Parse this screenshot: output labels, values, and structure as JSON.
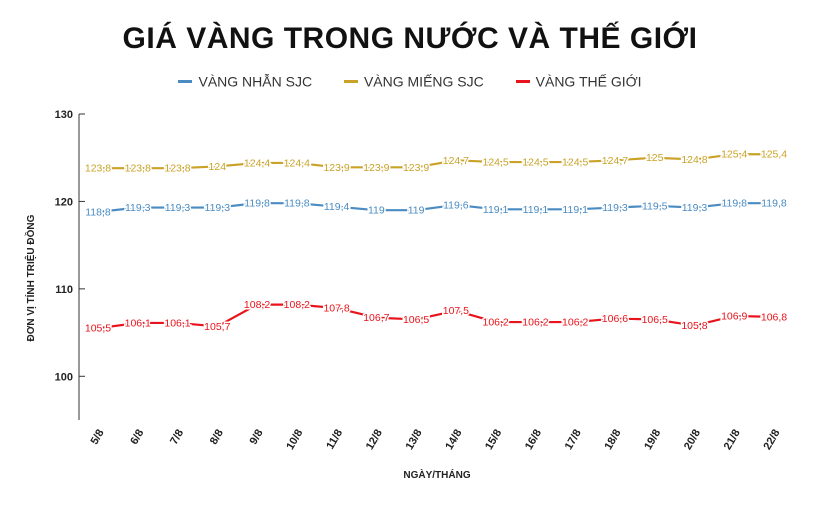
{
  "chart_data": {
    "type": "line",
    "title": "GIÁ VÀNG TRONG NƯỚC VÀ THẾ GIỚI",
    "xlabel": "NGÀY/THÁNG",
    "ylabel": "ĐƠN VỊ TÍNH TRIỆU ĐỒNG",
    "ylim": [
      95,
      130
    ],
    "yticks": [
      100,
      110,
      120,
      130
    ],
    "grid": false,
    "legend_position": "top",
    "categories": [
      "5/8",
      "6/8",
      "7/8",
      "8/8",
      "9/8",
      "10/8",
      "11/8",
      "12/8",
      "13/8",
      "14/8",
      "15/8",
      "16/8",
      "17/8",
      "18/8",
      "19/8",
      "20/8",
      "21/8",
      "22/8"
    ],
    "series": [
      {
        "name": "VÀNG NHẪN SJC",
        "color": "#4a8bc2",
        "values": [
          118.8,
          119.3,
          119.3,
          119.3,
          119.8,
          119.8,
          119.4,
          119,
          119,
          119.6,
          119.1,
          119.1,
          119.1,
          119.3,
          119.5,
          119.3,
          119.8,
          119.8
        ],
        "labels": [
          "118,8",
          "119,3",
          "119,3",
          "119,3",
          "119,8",
          "119,8",
          "119,4",
          "119",
          "119",
          "119,6",
          "119,1",
          "119,1",
          "119,1",
          "119,3",
          "119,5",
          "119,3",
          "119,8",
          "119,8"
        ]
      },
      {
        "name": "VÀNG MIẾNG SJC",
        "color": "#c9a227",
        "values": [
          123.8,
          123.8,
          123.8,
          124,
          124.4,
          124.4,
          123.9,
          123.9,
          123.9,
          124.7,
          124.5,
          124.5,
          124.5,
          124.7,
          125,
          124.8,
          125.4,
          125.4
        ],
        "labels": [
          "123,8",
          "123,8",
          "123,8",
          "124",
          "124,4",
          "124,4",
          "123,9",
          "123,9",
          "123,9",
          "124,7",
          "124,5",
          "124,5",
          "124,5",
          "124,7",
          "125",
          "124,8",
          "125,4",
          "125,4"
        ]
      },
      {
        "name": "VÀNG THẾ GIỚI",
        "color": "#e8131b",
        "values": [
          105.5,
          106.1,
          106.1,
          105.7,
          108.2,
          108.2,
          107.8,
          106.7,
          106.5,
          107.5,
          106.2,
          106.2,
          106.2,
          106.6,
          106.5,
          105.8,
          106.9,
          106.8
        ],
        "labels": [
          "105,5",
          "106,1",
          "106,1",
          "105,7",
          "108,2",
          "108,2",
          "107,8",
          "106,7",
          "106,5",
          "107,5",
          "106,2",
          "106,2",
          "106,2",
          "106,6",
          "106,5",
          "105,8",
          "106,9",
          "106,8"
        ]
      }
    ]
  }
}
